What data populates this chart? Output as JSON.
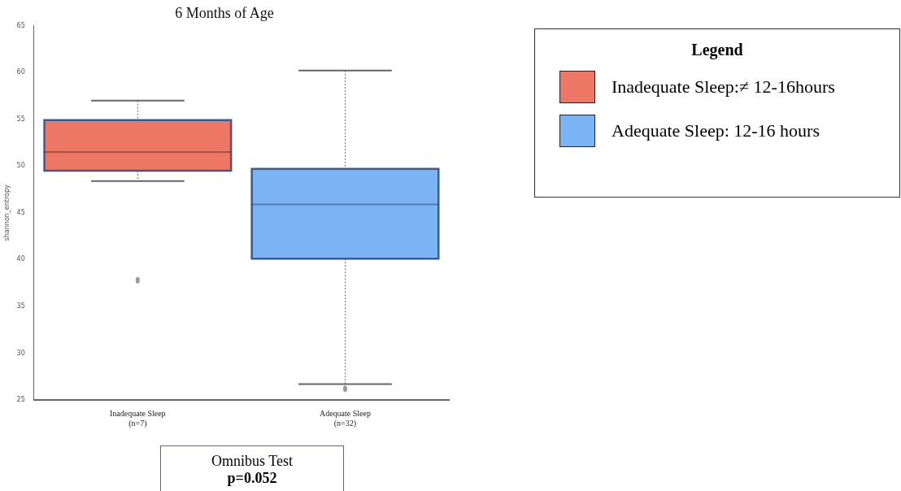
{
  "chart_data": {
    "type": "box",
    "title": "6 Months of Age",
    "ylabel": "shannon_entropy",
    "legend_title": "Legend",
    "categories": [
      "Inadequate Sleep\n(n=7)",
      "Adequate Sleep\n(n=32)"
    ],
    "series": [
      {
        "name": "Inadequate Sleep:≠ 12-16hours",
        "color": "#ee7866",
        "boxes": [
          {
            "low": 48.4,
            "q1": 49.5,
            "median": 51.5,
            "q3": 54.9,
            "high": 57.0,
            "outliers": [
              37.8
            ]
          },
          null
        ]
      },
      {
        "name": "Adequate Sleep: 12-16 hours",
        "color": "#7ab4f5",
        "boxes": [
          null,
          {
            "low": 26.7,
            "q1": 40.1,
            "median": 45.9,
            "q3": 49.7,
            "high": 60.2,
            "outliers": [
              26.2
            ]
          }
        ]
      }
    ],
    "ylim": [
      25,
      65
    ],
    "yticks": [
      25,
      30,
      35,
      40,
      45,
      50,
      55,
      60,
      65
    ],
    "grid": false,
    "legend": "top right",
    "annotations": [
      "Omnibus Test",
      "p=0.052"
    ]
  }
}
